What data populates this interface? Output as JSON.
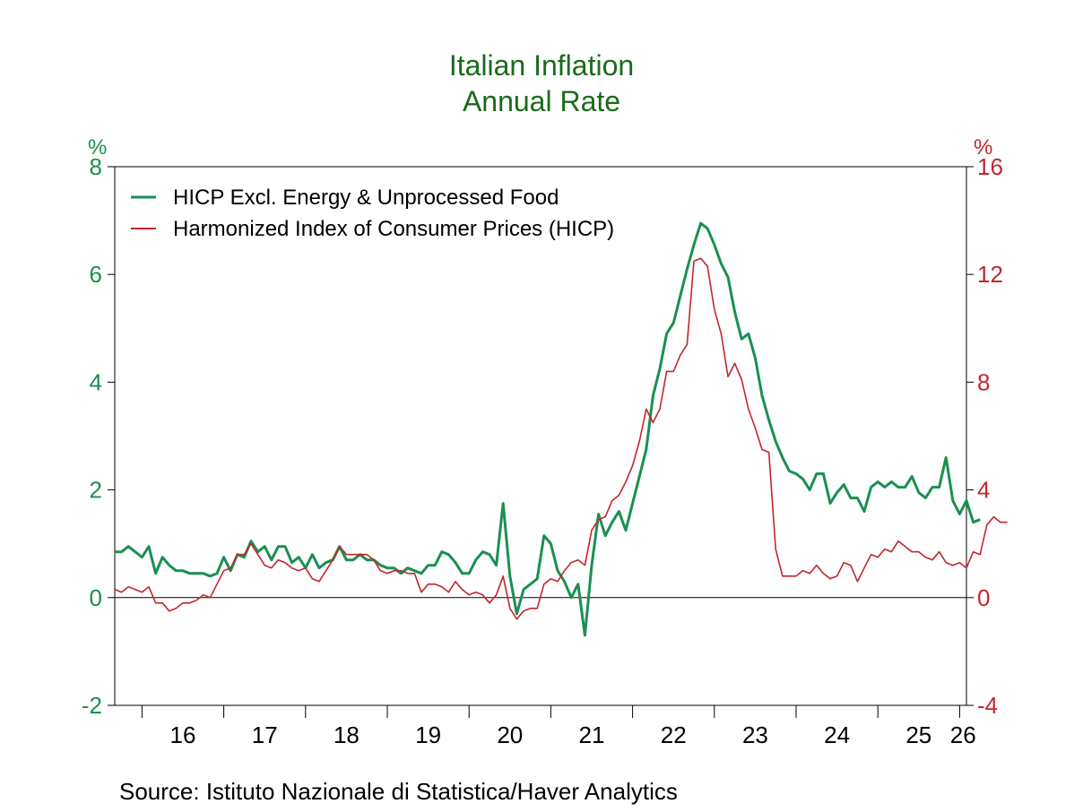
{
  "chart_data": {
    "type": "line",
    "title": "Italian Inflation",
    "subtitle": "Annual Rate",
    "source": "Source:  Istituto Nazionale di Statistica/Haver Analytics",
    "left_axis": {
      "unit": "%",
      "min": -2,
      "max": 8,
      "ticks": [
        "-2",
        "0",
        "2",
        "4",
        "6",
        "8"
      ],
      "color": "#1a9050"
    },
    "right_axis": {
      "unit": "%",
      "min": -4,
      "max": 16,
      "ticks": [
        "-4",
        "0",
        "4",
        "8",
        "12",
        "16"
      ],
      "color": "#c1272d"
    },
    "x_axis": {
      "start": "2015-09",
      "end": "2026-02",
      "year_labels": [
        "16",
        "17",
        "18",
        "19",
        "20",
        "21",
        "22",
        "23",
        "24",
        "25",
        "26"
      ]
    },
    "grid": false,
    "zero_line": true,
    "legend_position": "top-left",
    "series": [
      {
        "name": "HICP Excl. Energy & Unprocessed Food",
        "axis": "left",
        "color": "#1a9050",
        "start": "2015-09",
        "values": [
          0.85,
          0.85,
          0.95,
          0.85,
          0.75,
          0.95,
          0.45,
          0.75,
          0.6,
          0.5,
          0.5,
          0.45,
          0.45,
          0.45,
          0.4,
          0.45,
          0.75,
          0.5,
          0.8,
          0.75,
          1.05,
          0.85,
          0.95,
          0.7,
          0.95,
          0.95,
          0.65,
          0.75,
          0.55,
          0.8,
          0.55,
          0.65,
          0.7,
          0.95,
          0.7,
          0.7,
          0.8,
          0.7,
          0.7,
          0.6,
          0.55,
          0.55,
          0.45,
          0.55,
          0.5,
          0.45,
          0.6,
          0.6,
          0.85,
          0.8,
          0.65,
          0.45,
          0.45,
          0.7,
          0.85,
          0.8,
          0.6,
          1.75,
          0.4,
          -0.3,
          0.15,
          0.25,
          0.35,
          1.15,
          1.0,
          0.5,
          0.3,
          0.0,
          0.25,
          -0.7,
          0.6,
          1.55,
          1.15,
          1.4,
          1.6,
          1.25,
          1.75,
          2.25,
          2.75,
          3.75,
          4.25,
          4.9,
          5.1,
          5.6,
          6.1,
          6.55,
          6.95,
          6.85,
          6.55,
          6.2,
          5.95,
          5.3,
          4.8,
          4.9,
          4.45,
          3.75,
          3.3,
          2.9,
          2.6,
          2.35,
          2.3,
          2.2,
          2.0,
          2.3,
          2.3,
          1.75,
          1.95,
          2.1,
          1.85,
          1.85,
          1.6,
          2.05,
          2.15,
          2.05,
          2.15,
          2.05,
          2.05,
          2.25,
          1.95,
          1.85,
          2.05,
          2.05,
          2.6,
          1.8,
          1.55,
          1.8,
          1.4,
          1.45
        ]
      },
      {
        "name": "Harmonized Index of Consumer Prices (HICP)",
        "axis": "right",
        "color": "#c1272d",
        "start": "2015-09",
        "values": [
          0.3,
          0.2,
          0.4,
          0.3,
          0.2,
          0.4,
          -0.2,
          -0.2,
          -0.5,
          -0.4,
          -0.2,
          -0.2,
          -0.1,
          0.1,
          0.0,
          0.5,
          1.0,
          1.1,
          1.6,
          1.6,
          2.0,
          1.6,
          1.2,
          1.1,
          1.4,
          1.3,
          1.1,
          1.0,
          1.1,
          0.7,
          0.6,
          1.0,
          1.4,
          1.9,
          1.6,
          1.6,
          1.6,
          1.6,
          1.4,
          1.0,
          0.9,
          1.0,
          1.0,
          0.9,
          0.9,
          0.2,
          0.5,
          0.5,
          0.4,
          0.2,
          0.6,
          0.3,
          0.1,
          0.2,
          0.1,
          -0.2,
          0.1,
          0.8,
          -0.4,
          -0.8,
          -0.5,
          -0.4,
          -0.4,
          0.5,
          0.7,
          0.6,
          1.0,
          1.3,
          1.4,
          1.2,
          2.5,
          2.9,
          3.0,
          3.6,
          3.8,
          4.3,
          4.9,
          5.8,
          7.0,
          6.5,
          7.0,
          8.4,
          8.4,
          9.0,
          9.4,
          12.5,
          12.6,
          12.3,
          10.7,
          9.8,
          8.2,
          8.7,
          8.1,
          7.0,
          6.3,
          5.5,
          5.4,
          1.8,
          0.8,
          0.8,
          0.8,
          1.0,
          0.9,
          1.2,
          0.9,
          0.7,
          0.8,
          1.3,
          1.2,
          0.6,
          1.1,
          1.6,
          1.5,
          1.8,
          1.7,
          2.1,
          1.9,
          1.7,
          1.7,
          1.5,
          1.4,
          1.7,
          1.3,
          1.2,
          1.3,
          1.1,
          1.7,
          1.6,
          2.7,
          3.0,
          2.8,
          2.8
        ]
      }
    ]
  }
}
